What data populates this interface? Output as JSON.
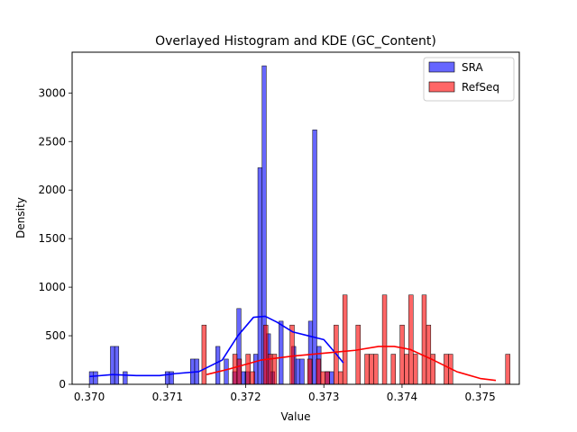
{
  "chart_data": {
    "type": "histogram",
    "title": "Overlayed Histogram and KDE (GC_Content)",
    "xlabel": "Value",
    "ylabel": "Density",
    "xlim": [
      0.36978,
      0.3755
    ],
    "ylim": [
      0,
      3420
    ],
    "xticks": [
      0.37,
      0.371,
      0.372,
      0.373,
      0.374,
      0.375
    ],
    "xtick_labels": [
      "0.370",
      "0.371",
      "0.372",
      "0.373",
      "0.374",
      "0.375"
    ],
    "yticks": [
      0,
      500,
      1000,
      1500,
      2000,
      2500,
      3000
    ],
    "ytick_labels": [
      "0",
      "500",
      "1000",
      "1500",
      "2000",
      "2500",
      "3000"
    ],
    "legend_position": "top-right",
    "series": [
      {
        "name": "SRA",
        "color": "#0000ff",
        "bin_start": 0.37,
        "bin_width": 5.39e-05,
        "counts": [
          130,
          130,
          0,
          0,
          0,
          390,
          390,
          0,
          130,
          0,
          0,
          0,
          0,
          0,
          0,
          0,
          0,
          0,
          130,
          130,
          0,
          0,
          0,
          0,
          260,
          260,
          0,
          0,
          0,
          0,
          390,
          0,
          260,
          0,
          130,
          780,
          130,
          130,
          0,
          310,
          2230,
          3280,
          520,
          130,
          0,
          650,
          0,
          0,
          390,
          260,
          260,
          0,
          650,
          2620,
          390,
          0,
          130,
          130,
          0,
          0,
          0,
          0,
          0,
          0,
          0,
          0,
          0,
          0,
          0,
          0,
          0,
          0,
          0,
          0,
          0,
          0,
          0,
          0,
          0,
          0,
          0,
          0,
          0,
          0,
          0,
          0,
          0,
          0,
          0,
          0,
          0,
          0,
          0,
          0,
          0,
          0,
          0
        ],
        "kde_x": [
          0.37,
          0.3703,
          0.3706,
          0.3709,
          0.3711,
          0.3714,
          0.3717,
          0.3719,
          0.3721,
          0.37225,
          0.3724,
          0.3726,
          0.3728,
          0.373,
          0.37315,
          0.37325
        ],
        "kde_y": [
          80,
          100,
          90,
          90,
          110,
          130,
          250,
          500,
          690,
          700,
          640,
          540,
          500,
          460,
          320,
          220
        ]
      },
      {
        "name": "RefSeq",
        "color": "#ff0000",
        "bin_start": 0.37144,
        "bin_width": 5.63e-05,
        "counts": [
          610,
          0,
          0,
          0,
          0,
          0,
          0,
          310,
          260,
          0,
          310,
          130,
          0,
          0,
          610,
          310,
          310,
          0,
          0,
          0,
          610,
          0,
          0,
          0,
          260,
          0,
          260,
          130,
          130,
          0,
          610,
          130,
          920,
          0,
          0,
          610,
          0,
          310,
          310,
          310,
          0,
          920,
          0,
          310,
          0,
          610,
          310,
          920,
          310,
          0,
          920,
          610,
          310,
          0,
          0,
          310,
          310,
          0,
          0,
          0,
          0,
          0,
          0,
          0,
          0,
          0,
          0,
          0,
          0,
          310
        ],
        "kde_x": [
          0.3715,
          0.3718,
          0.3722,
          0.3726,
          0.373,
          0.3734,
          0.3737,
          0.3739,
          0.3741,
          0.3744,
          0.3747,
          0.375,
          0.3752
        ],
        "kde_y": [
          100,
          160,
          250,
          290,
          320,
          350,
          390,
          390,
          360,
          250,
          130,
          60,
          40
        ]
      }
    ]
  }
}
